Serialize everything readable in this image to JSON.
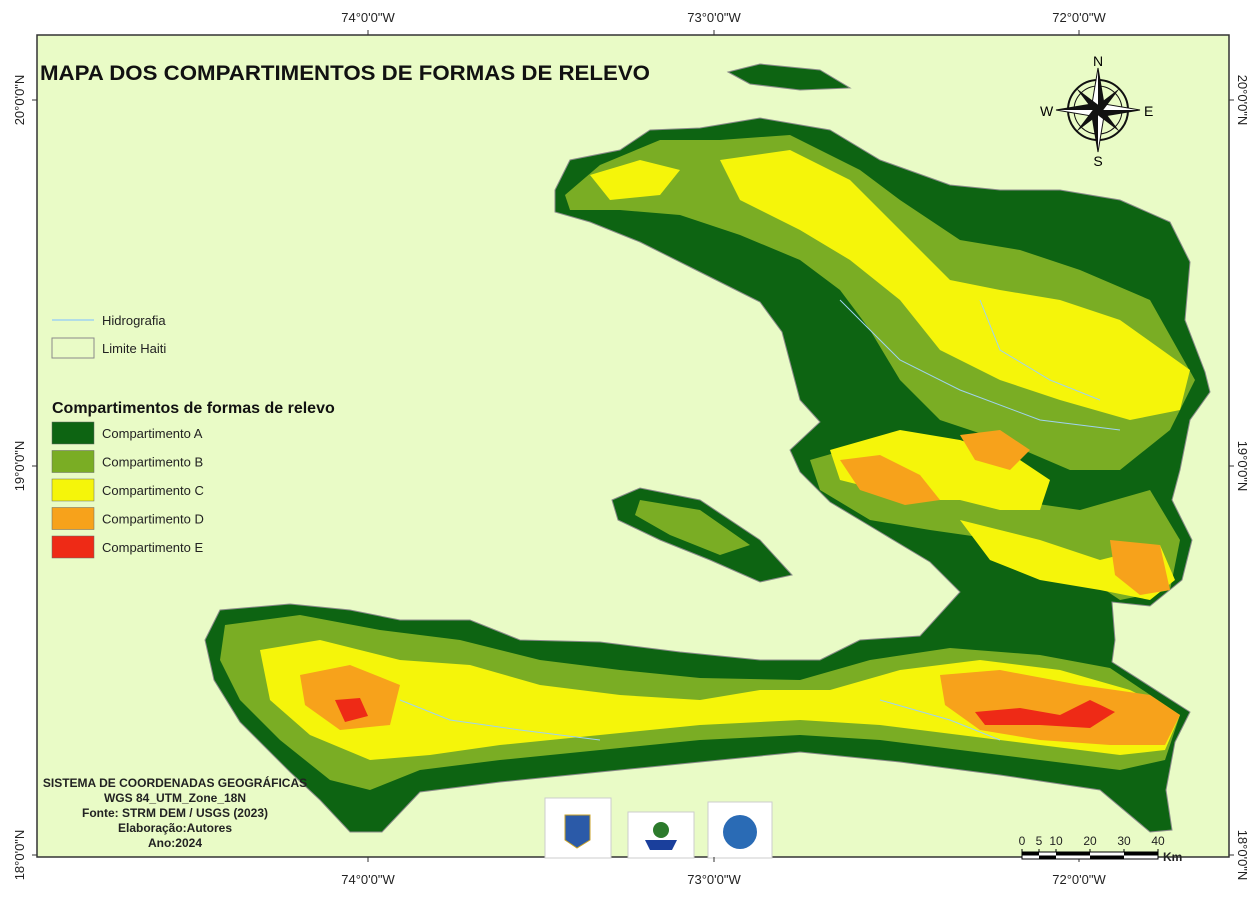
{
  "header": {
    "title": "MAPA DOS COMPARTIMENTOS DE FORMAS DE RELEVO"
  },
  "graticule": {
    "longitudes": [
      "74°0'0\"W",
      "73°0'0\"W",
      "72°0'0\"W"
    ],
    "latitudes": [
      "20°0'0\"N",
      "19°0'0\"N",
      "18°0'0\"N"
    ]
  },
  "compass": {
    "north": "N",
    "south": "S",
    "east": "E",
    "west": "W"
  },
  "legend": {
    "lines": [
      {
        "label": "Hidrografia",
        "color": "#9fd3f0"
      },
      {
        "label": "Limite Haiti",
        "color": "#8a8a8a"
      }
    ],
    "relief_title": "Compartimentos de formas de relevo",
    "classes": [
      {
        "label": "Compartimento A",
        "color": "#0d6412"
      },
      {
        "label": "Compartimento B",
        "color": "#7aad24"
      },
      {
        "label": "Compartimento C",
        "color": "#f5f50a"
      },
      {
        "label": "Compartimento D",
        "color": "#f7a21b"
      },
      {
        "label": "Compartimento E",
        "color": "#ee2a16"
      }
    ]
  },
  "credits": [
    "SISTEMA DE COORDENADAS GEOGRÁFICAS",
    "WGS 84_UTM_Zone_18N",
    "Fonte: STRM DEM / USGS (2023)",
    "Elaboração:Autores",
    "Ano:2024"
  ],
  "scale_bar": {
    "ticks": [
      0,
      5,
      10,
      20,
      30,
      40
    ],
    "unit": "Km"
  }
}
